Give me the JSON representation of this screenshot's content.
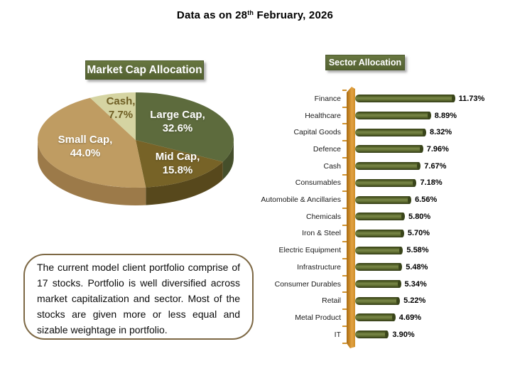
{
  "title": {
    "prefix": "Data as on 28",
    "superscript": "th",
    "suffix": " February, 2026"
  },
  "note": "The current model client portfolio comprise of 17 stocks. Portfolio is well diversified across market capitalization and sector. Most of the stocks are given more or less equal and sizable weightage in portfolio.",
  "chart_data": [
    {
      "type": "pie",
      "style": "3d",
      "title": "Market Cap Allocation",
      "labels": [
        "Large Cap",
        "Mid Cap",
        "Small Cap",
        "Cash"
      ],
      "values": [
        32.6,
        15.8,
        44.0,
        7.7
      ],
      "display_values": [
        "32.6%",
        "15.8%",
        "44.0%",
        "7.7%"
      ],
      "colors": [
        "#5d6b3d",
        "#776327",
        "#bf9c62",
        "#d5d4a2"
      ],
      "side_colors": [
        "#454f2b",
        "#57481c",
        "#9c7a49",
        "#b7b77f"
      ],
      "label_colors": [
        "#ffffff",
        "#ffffff",
        "#ffffff",
        "#6e5e24"
      ],
      "start_angle_deg": 0,
      "direction": "clockwise",
      "legend": "none"
    },
    {
      "type": "bar",
      "orientation": "horizontal",
      "title": "Sector Allocation",
      "categories": [
        "Finance",
        "Healthcare",
        "Capital Goods",
        "Defence",
        "Cash",
        "Consumables",
        "Automobile & Ancillaries",
        "Chemicals",
        "Iron & Steel",
        "Electric Equipment",
        "Infrastructure",
        "Consumer Durables",
        "Retail",
        "Metal Product",
        "IT"
      ],
      "values": [
        11.73,
        8.89,
        8.32,
        7.96,
        7.67,
        7.18,
        6.56,
        5.8,
        5.7,
        5.58,
        5.48,
        5.34,
        5.22,
        4.69,
        3.9
      ],
      "display_values": [
        "11.73%",
        "8.89%",
        "8.32%",
        "7.96%",
        "7.67%",
        "7.18%",
        "6.56%",
        "5.80%",
        "5.70%",
        "5.58%",
        "5.48%",
        "5.34%",
        "5.22%",
        "4.69%",
        "3.90%"
      ],
      "bar_color": "#5a682e",
      "axis_color": "#d6932b",
      "xlim": [
        0,
        12.5
      ],
      "value_labels": true,
      "grid": false
    }
  ]
}
